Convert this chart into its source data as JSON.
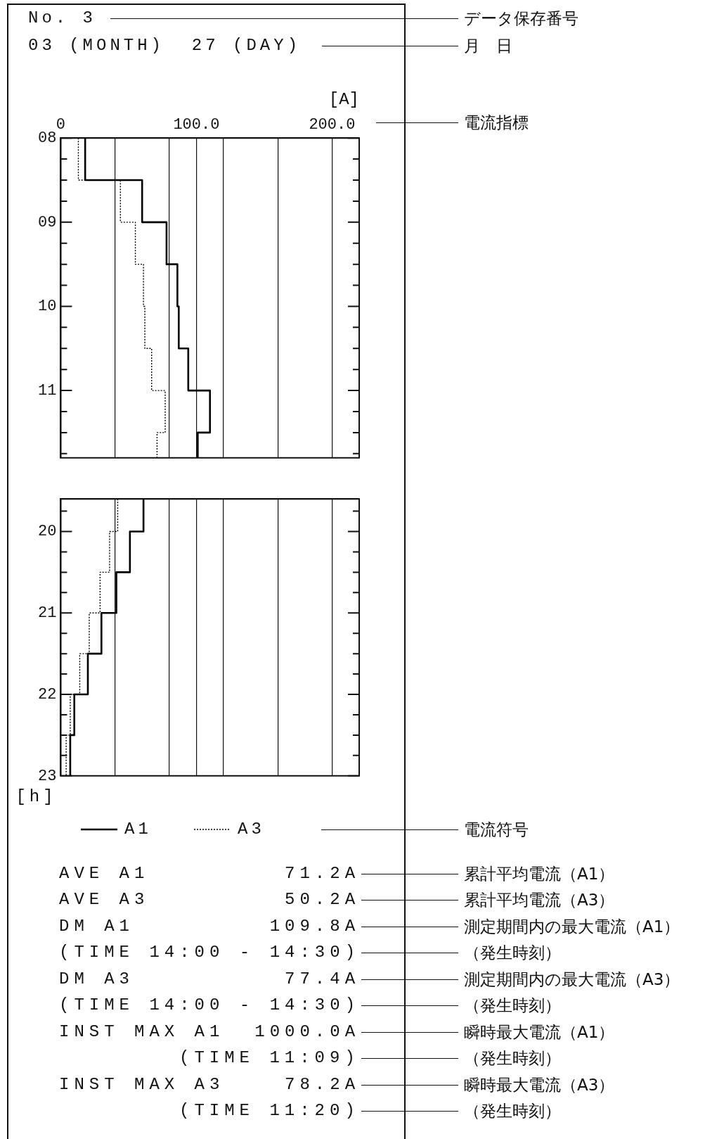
{
  "chart_data": [
    {
      "type": "step",
      "orientation": "horizontal",
      "title": "No. 3",
      "subtitle": "03 (MONTH)  27 (DAY)",
      "xlabel": "[A]",
      "annotations": [
        "データ保存番号",
        "月　日",
        "電流指標"
      ],
      "xlim": [
        0,
        220
      ],
      "xticks": [
        0,
        {
          "value": 40,
          "label": null
        },
        {
          "value": 80,
          "label": null
        },
        {
          "value": 100,
          "label": "100.0"
        },
        {
          "value": 120,
          "label": null
        },
        {
          "value": 160,
          "label": null
        },
        {
          "value": 200,
          "label": "200.0"
        }
      ],
      "ylim": [
        11.8,
        8
      ],
      "yticks": [
        {
          "value": 8,
          "label": "08"
        },
        {
          "value": 8.25,
          "label": null
        },
        {
          "value": 8.5,
          "label": null
        },
        {
          "value": 8.75,
          "label": null
        },
        {
          "value": 9,
          "label": "09"
        },
        {
          "value": 9.25,
          "label": null
        },
        {
          "value": 9.5,
          "label": null
        },
        {
          "value": 9.75,
          "label": null
        },
        {
          "value": 10,
          "label": "10"
        },
        {
          "value": 10.25,
          "label": null
        },
        {
          "value": 10.5,
          "label": null
        },
        {
          "value": 10.75,
          "label": null
        },
        {
          "value": 11,
          "label": "11"
        },
        {
          "value": 11.25,
          "label": null
        },
        {
          "value": 11.5,
          "label": null
        },
        {
          "value": 11.75,
          "label": null
        }
      ],
      "grid": "x",
      "series": [
        {
          "color": "#000000",
          "line_style": "solid",
          "x": [
            8,
            8.5,
            9,
            9.5,
            10,
            10.5,
            11,
            11.5,
            11.8
          ],
          "values": [
            18,
            60,
            78,
            86,
            87,
            94,
            110,
            101,
            101
          ]
        },
        {
          "color": "#000000",
          "line_style": "dotted",
          "x": [
            8,
            8.5,
            9,
            9.5,
            10,
            10.5,
            11,
            11.5,
            11.8
          ],
          "values": [
            13,
            44,
            55,
            61,
            62,
            67,
            77,
            71,
            71
          ]
        }
      ]
    },
    {
      "type": "step",
      "orientation": "horizontal",
      "ylabel": "[h]",
      "legend": "bottom",
      "tick_labels": "y",
      "annotations": [
        "電流符号",
        "AVE A1         71.2A",
        "累計平均電流（A1）",
        "AVE A3         50.2A",
        "累計平均電流（A3）",
        "DM A1         109.8A",
        "測定期間内の最大電流（A1）",
        "(TIME 14:00 - 14:30)",
        "（発生時刻）",
        "DM A3          77.4A",
        "測定期間内の最大電流（A3）",
        "(TIME 14:00 - 14:30)",
        "（発生時刻）",
        "INST MAX A1  1000.0A",
        "瞬時最大電流（A1）",
        "(TIME 11:09)",
        "（発生時刻）",
        "INST MAX A3    78.2A",
        "瞬時最大電流（A3）",
        "(TIME 11:20)",
        "（発生時刻）"
      ],
      "xlim": [
        0,
        220
      ],
      "xticks": [
        {
          "value": 0,
          "label": null
        },
        {
          "value": 40,
          "label": null
        },
        {
          "value": 80,
          "label": null
        },
        {
          "value": 100,
          "label": null
        },
        {
          "value": 120,
          "label": null
        },
        {
          "value": 160,
          "label": null
        },
        {
          "value": 200,
          "label": null
        }
      ],
      "ylim": [
        23,
        19.6
      ],
      "yticks": [
        {
          "value": 19.75,
          "label": null
        },
        {
          "value": 20,
          "label": "20"
        },
        {
          "value": 20.25,
          "label": null
        },
        {
          "value": 20.5,
          "label": null
        },
        {
          "value": 20.75,
          "label": null
        },
        {
          "value": 21,
          "label": "21"
        },
        {
          "value": 21.25,
          "label": null
        },
        {
          "value": 21.5,
          "label": null
        },
        {
          "value": 21.75,
          "label": null
        },
        {
          "value": 22,
          "label": "22"
        },
        {
          "value": 22.25,
          "label": null
        },
        {
          "value": 22.5,
          "label": null
        },
        {
          "value": 22.75,
          "label": null
        },
        {
          "value": 23,
          "label": "23"
        }
      ],
      "grid": "x",
      "series": [
        {
          "name": "A1",
          "color": "#000000",
          "line_style": "solid",
          "x": [
            19.6,
            20,
            20.5,
            21,
            21.5,
            22,
            22.5,
            23
          ],
          "values": [
            61,
            51,
            41,
            30,
            20,
            10,
            7,
            7
          ]
        },
        {
          "name": "A3",
          "color": "#000000",
          "line_style": "dotted",
          "x": [
            19.6,
            20,
            20.5,
            21,
            21.5,
            22,
            22.5,
            23
          ],
          "values": [
            42,
            36,
            29,
            21,
            14,
            7,
            4,
            4
          ]
        }
      ]
    }
  ]
}
